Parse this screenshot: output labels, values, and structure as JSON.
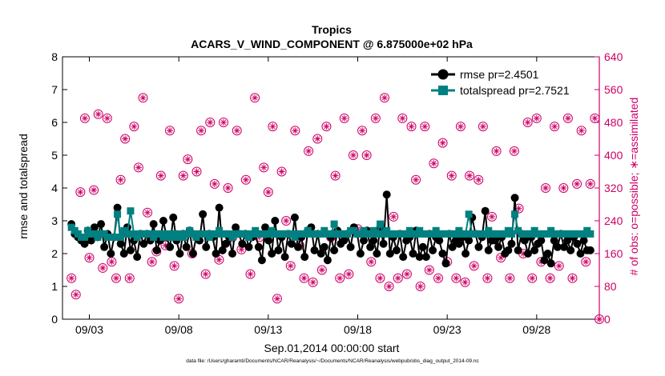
{
  "chart_data": {
    "type": "line",
    "title": "Tropics",
    "subtitle": "ACARS_V_WIND_COMPONENT @ 6.875000e+02 hPa",
    "xlabel": "Sep.01,2014 00:00:00 start",
    "ylabel_left": "rmse and totalspread",
    "ylabel_right": "# of obs: o=possible; ∗=assimilated",
    "ylim_left": [
      0,
      8
    ],
    "ylim_right": [
      0,
      640
    ],
    "xlim_days": [
      0.5,
      30.5
    ],
    "left_ticks": [
      "0",
      "1",
      "2",
      "3",
      "4",
      "5",
      "6",
      "7",
      "8"
    ],
    "right_ticks": [
      "0",
      "80",
      "160",
      "240",
      "320",
      "400",
      "480",
      "560",
      "640"
    ],
    "x_ticks": [
      {
        "day": 2,
        "label": "09/03"
      },
      {
        "day": 7,
        "label": "09/08"
      },
      {
        "day": 12,
        "label": "09/13"
      },
      {
        "day": 17,
        "label": "09/18"
      },
      {
        "day": 22,
        "label": "09/23"
      },
      {
        "day": 27,
        "label": "09/28"
      }
    ],
    "series": [
      {
        "name": "rmse",
        "legend": "rmse pr=2.4501",
        "color": "#000000",
        "marker": "circle",
        "values": [
          2.9,
          2.6,
          2.5,
          2.4,
          2.3,
          2.7,
          2.4,
          2.8,
          2.5,
          2.9,
          2.2,
          2.6,
          2.0,
          2.5,
          3.4,
          2.3,
          2.0,
          2.8,
          2.1,
          2.4,
          1.9,
          2.6,
          2.3,
          2.6,
          2.4,
          2.9,
          2.1,
          2.4,
          3.0,
          2.5,
          2.2,
          3.1,
          2.4,
          2.0,
          2.6,
          2.2,
          2.7,
          2.0,
          2.5,
          2.4,
          3.2,
          2.2,
          2.6,
          2.5,
          2.0,
          3.4,
          2.1,
          2.3,
          2.5,
          2.0,
          2.8,
          2.6,
          2.3,
          2.6,
          2.2,
          2.5,
          2.6,
          2.2,
          1.8,
          2.8,
          2.4,
          2.0,
          3.0,
          2.1,
          2.5,
          1.9,
          2.6,
          2.3,
          3.1,
          2.2,
          2.5,
          1.9,
          2.7,
          2.8,
          2.1,
          2.6,
          2.0,
          2.2,
          1.8,
          2.5,
          2.1,
          2.7,
          2.3,
          2.4,
          2.6,
          2.2,
          2.8,
          2.6,
          2.0,
          2.4,
          2.7,
          2.2,
          2.4,
          2.0,
          2.8,
          2.3,
          3.8,
          2.0,
          2.5,
          2.1,
          2.6,
          1.9,
          2.4,
          2.5,
          2.0,
          2.7,
          1.9,
          2.2,
          1.9,
          2.6,
          2.1,
          2.5,
          2.4,
          2.0,
          1.7,
          2.6,
          2.2,
          2.4,
          2.3,
          2.5,
          2.0,
          2.4,
          3.1,
          2.6,
          2.2,
          2.5,
          3.3,
          2.1,
          2.4,
          2.4,
          2.2,
          2.5,
          2.0,
          2.1,
          2.3,
          3.7,
          2.1,
          2.6,
          2.4,
          2.0,
          2.5,
          2.1,
          2.3,
          2.4,
          1.8,
          2.0,
          1.7,
          2.4,
          2.2,
          2.6,
          2.2,
          2.4,
          2.1,
          2.5,
          2.3,
          2.0,
          2.4,
          2.1,
          2.1
        ]
      },
      {
        "name": "totalspread",
        "legend": "totalspread pr=2.7521",
        "color": "#008080",
        "marker": "square",
        "values": [
          2.8,
          2.7,
          2.6,
          2.5,
          2.5,
          2.7,
          2.6,
          2.6,
          2.5,
          2.6,
          2.6,
          2.5,
          2.5,
          2.5,
          3.2,
          2.5,
          2.7,
          2.6,
          3.3,
          2.6,
          2.5,
          2.6,
          2.6,
          2.6,
          2.6,
          2.5,
          2.6,
          2.6,
          2.5,
          2.6,
          2.5,
          2.6,
          2.5,
          2.6,
          2.5,
          2.6,
          2.7,
          2.6,
          2.5,
          2.6,
          2.6,
          2.6,
          2.5,
          2.6,
          2.6,
          2.7,
          2.6,
          2.6,
          2.6,
          2.5,
          2.6,
          2.6,
          2.6,
          2.6,
          2.5,
          2.6,
          2.7,
          2.6,
          2.6,
          2.6,
          2.6,
          2.7,
          2.6,
          2.6,
          2.6,
          2.6,
          2.6,
          2.6,
          2.5,
          2.6,
          2.6,
          2.6,
          2.7,
          2.6,
          2.6,
          2.6,
          2.6,
          2.7,
          2.6,
          2.6,
          2.9,
          2.6,
          2.6,
          2.6,
          2.6,
          2.7,
          2.7,
          2.6,
          2.6,
          2.7,
          2.6,
          2.6,
          2.7,
          2.6,
          2.9,
          2.6,
          2.7,
          2.6,
          2.6,
          2.6,
          2.6,
          2.6,
          2.6,
          2.7,
          2.6,
          2.6,
          2.7,
          2.6,
          2.6,
          2.6,
          2.6,
          2.7,
          2.6,
          2.6,
          2.6,
          2.6,
          2.6,
          2.6,
          2.7,
          2.6,
          2.6,
          3.2,
          2.6,
          2.6,
          2.6,
          2.6,
          2.6,
          2.7,
          2.6,
          2.6,
          2.6,
          2.6,
          2.6,
          2.7,
          2.6,
          3.2,
          2.7,
          2.6,
          2.6,
          2.6,
          2.6,
          2.7,
          2.6,
          2.6,
          2.6,
          2.6,
          2.7,
          2.6,
          2.6,
          2.6,
          2.6,
          2.6,
          2.6,
          2.6,
          2.6,
          2.6,
          2.6,
          2.7,
          2.6
        ]
      }
    ],
    "obs_counts": {
      "name": "# of obs",
      "color": "#cc0066",
      "points": [
        {
          "day": 1.0,
          "count": 100
        },
        {
          "day": 1.25,
          "count": 60
        },
        {
          "day": 1.5,
          "count": 310
        },
        {
          "day": 1.75,
          "count": 490
        },
        {
          "day": 2.0,
          "count": 150
        },
        {
          "day": 2.25,
          "count": 315
        },
        {
          "day": 2.5,
          "count": 500
        },
        {
          "day": 2.75,
          "count": 125
        },
        {
          "day": 3.0,
          "count": 490
        },
        {
          "day": 3.25,
          "count": 140
        },
        {
          "day": 3.5,
          "count": 100
        },
        {
          "day": 3.75,
          "count": 340
        },
        {
          "day": 4.0,
          "count": 440
        },
        {
          "day": 4.25,
          "count": 100
        },
        {
          "day": 4.5,
          "count": 470
        },
        {
          "day": 4.75,
          "count": 370
        },
        {
          "day": 5.0,
          "count": 540
        },
        {
          "day": 5.25,
          "count": 260
        },
        {
          "day": 5.5,
          "count": 140
        },
        {
          "day": 5.75,
          "count": 165
        },
        {
          "day": 6.0,
          "count": 350
        },
        {
          "day": 6.25,
          "count": 180
        },
        {
          "day": 6.5,
          "count": 460
        },
        {
          "day": 6.75,
          "count": 130
        },
        {
          "day": 7.0,
          "count": 50
        },
        {
          "day": 7.25,
          "count": 350
        },
        {
          "day": 7.5,
          "count": 390
        },
        {
          "day": 7.75,
          "count": 160
        },
        {
          "day": 8.0,
          "count": 360
        },
        {
          "day": 8.25,
          "count": 460
        },
        {
          "day": 8.5,
          "count": 110
        },
        {
          "day": 8.75,
          "count": 480
        },
        {
          "day": 9.0,
          "count": 330
        },
        {
          "day": 9.25,
          "count": 145
        },
        {
          "day": 9.5,
          "count": 480
        },
        {
          "day": 9.75,
          "count": 320
        },
        {
          "day": 10.0,
          "count": 200
        },
        {
          "day": 10.25,
          "count": 460
        },
        {
          "day": 10.5,
          "count": 170
        },
        {
          "day": 10.75,
          "count": 340
        },
        {
          "day": 11.0,
          "count": 110
        },
        {
          "day": 11.25,
          "count": 540
        },
        {
          "day": 11.5,
          "count": 200
        },
        {
          "day": 11.75,
          "count": 370
        },
        {
          "day": 12.0,
          "count": 310
        },
        {
          "day": 12.25,
          "count": 470
        },
        {
          "day": 12.5,
          "count": 50
        },
        {
          "day": 12.75,
          "count": 360
        },
        {
          "day": 13.0,
          "count": 240
        },
        {
          "day": 13.25,
          "count": 130
        },
        {
          "day": 13.5,
          "count": 460
        },
        {
          "day": 13.75,
          "count": 180
        },
        {
          "day": 14.0,
          "count": 100
        },
        {
          "day": 14.25,
          "count": 410
        },
        {
          "day": 14.5,
          "count": 90
        },
        {
          "day": 14.75,
          "count": 440
        },
        {
          "day": 15.0,
          "count": 120
        },
        {
          "day": 15.25,
          "count": 470
        },
        {
          "day": 15.5,
          "count": 200
        },
        {
          "day": 15.75,
          "count": 350
        },
        {
          "day": 16.0,
          "count": 100
        },
        {
          "day": 16.25,
          "count": 490
        },
        {
          "day": 16.5,
          "count": 110
        },
        {
          "day": 16.75,
          "count": 400
        },
        {
          "day": 17.0,
          "count": 220
        },
        {
          "day": 17.25,
          "count": 460
        },
        {
          "day": 17.5,
          "count": 400
        },
        {
          "day": 17.75,
          "count": 140
        },
        {
          "day": 18.0,
          "count": 490
        },
        {
          "day": 18.25,
          "count": 100
        },
        {
          "day": 18.5,
          "count": 540
        },
        {
          "day": 18.75,
          "count": 80
        },
        {
          "day": 19.0,
          "count": 250
        },
        {
          "day": 19.25,
          "count": 100
        },
        {
          "day": 19.5,
          "count": 490
        },
        {
          "day": 19.75,
          "count": 110
        },
        {
          "day": 20.0,
          "count": 470
        },
        {
          "day": 20.25,
          "count": 340
        },
        {
          "day": 20.5,
          "count": 80
        },
        {
          "day": 20.75,
          "count": 470
        },
        {
          "day": 21.0,
          "count": 120
        },
        {
          "day": 21.25,
          "count": 380
        },
        {
          "day": 21.5,
          "count": 100
        },
        {
          "day": 21.75,
          "count": 430
        },
        {
          "day": 22.0,
          "count": 140
        },
        {
          "day": 22.25,
          "count": 350
        },
        {
          "day": 22.5,
          "count": 100
        },
        {
          "day": 22.75,
          "count": 470
        },
        {
          "day": 23.0,
          "count": 90
        },
        {
          "day": 23.25,
          "count": 350
        },
        {
          "day": 23.5,
          "count": 130
        },
        {
          "day": 23.75,
          "count": 340
        },
        {
          "day": 24.0,
          "count": 470
        },
        {
          "day": 24.25,
          "count": 100
        },
        {
          "day": 24.5,
          "count": 250
        },
        {
          "day": 24.75,
          "count": 410
        },
        {
          "day": 25.0,
          "count": 150
        },
        {
          "day": 25.25,
          "count": 560
        },
        {
          "day": 25.5,
          "count": 100
        },
        {
          "day": 25.75,
          "count": 410
        },
        {
          "day": 26.0,
          "count": 270
        },
        {
          "day": 26.25,
          "count": 160
        },
        {
          "day": 26.5,
          "count": 480
        },
        {
          "day": 26.75,
          "count": 100
        },
        {
          "day": 27.0,
          "count": 490
        },
        {
          "day": 27.25,
          "count": 140
        },
        {
          "day": 27.5,
          "count": 320
        },
        {
          "day": 27.75,
          "count": 100
        },
        {
          "day": 28.0,
          "count": 470
        },
        {
          "day": 28.25,
          "count": 130
        },
        {
          "day": 28.5,
          "count": 320
        },
        {
          "day": 28.75,
          "count": 490
        },
        {
          "day": 29.0,
          "count": 100
        },
        {
          "day": 29.25,
          "count": 330
        },
        {
          "day": 29.5,
          "count": 460
        },
        {
          "day": 29.75,
          "count": 140
        },
        {
          "day": 30.0,
          "count": 330
        },
        {
          "day": 30.25,
          "count": 490
        },
        {
          "day": 30.5,
          "count": 0
        }
      ]
    },
    "legend_position": "top-right",
    "grid": false
  },
  "footer": {
    "data_file": "data file: /Users/gharamti/Documents/NCAR/Reanalysis/~/Documents/NCAR/Reanalysis/webpub/obs_diag_output_2014-09.nc"
  }
}
